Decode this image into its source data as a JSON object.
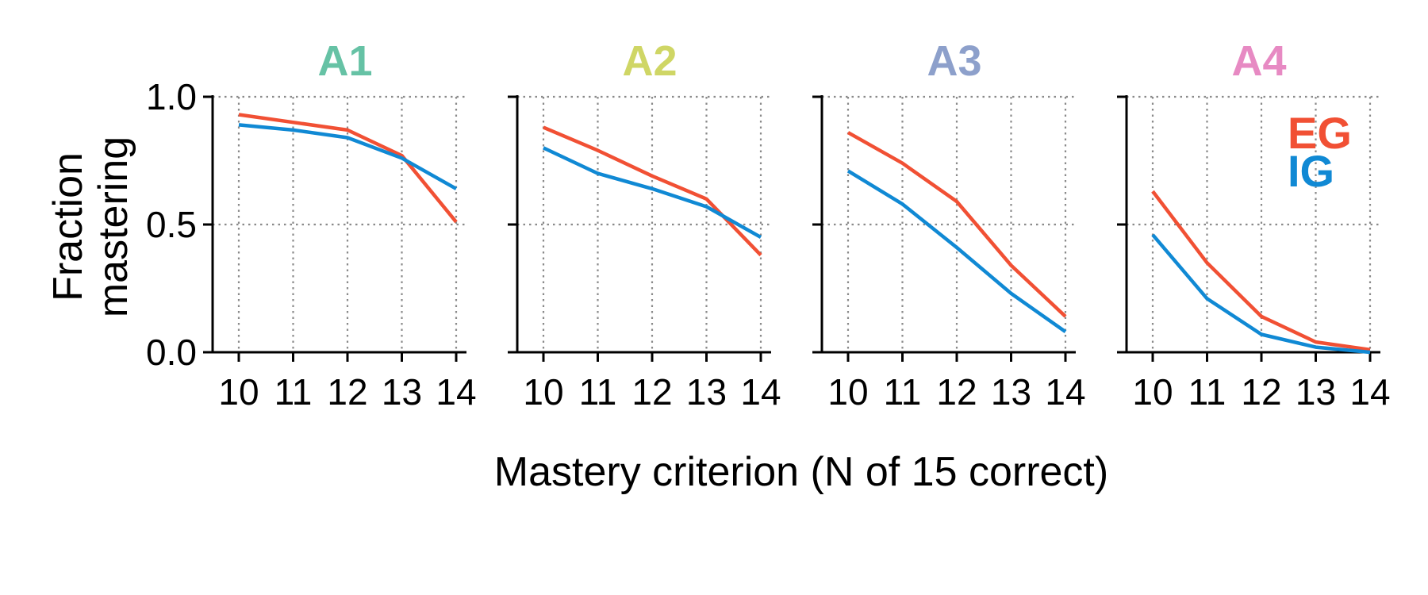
{
  "figure": {
    "ylabel_lines": [
      "Fraction",
      "mastering"
    ],
    "xlabel": "Mastery criterion (N of 15 correct)",
    "legend": [
      {
        "label": "EG",
        "color": "#f15034"
      },
      {
        "label": "IG",
        "color": "#1089d4"
      }
    ]
  },
  "chart_data": [
    {
      "type": "line",
      "title": "A1",
      "title_color": "#66c2a5",
      "x": [
        10,
        11,
        12,
        13,
        14
      ],
      "ylim": [
        0,
        1
      ],
      "yticks": [
        "0.0",
        "0.5",
        "1.0"
      ],
      "grid": true,
      "series": [
        {
          "name": "EG",
          "color": "#f15034",
          "values": [
            0.93,
            0.9,
            0.87,
            0.77,
            0.51
          ]
        },
        {
          "name": "IG",
          "color": "#1089d4",
          "values": [
            0.89,
            0.87,
            0.84,
            0.76,
            0.64
          ]
        }
      ]
    },
    {
      "type": "line",
      "title": "A2",
      "title_color": "#cfd665",
      "x": [
        10,
        11,
        12,
        13,
        14
      ],
      "ylim": [
        0,
        1
      ],
      "yticks": [
        "0.0",
        "0.5",
        "1.0"
      ],
      "grid": true,
      "series": [
        {
          "name": "EG",
          "color": "#f15034",
          "values": [
            0.88,
            0.79,
            0.69,
            0.6,
            0.38
          ]
        },
        {
          "name": "IG",
          "color": "#1089d4",
          "values": [
            0.8,
            0.7,
            0.64,
            0.57,
            0.45
          ]
        }
      ]
    },
    {
      "type": "line",
      "title": "A3",
      "title_color": "#8da0cb",
      "x": [
        10,
        11,
        12,
        13,
        14
      ],
      "ylim": [
        0,
        1
      ],
      "yticks": [
        "0.0",
        "0.5",
        "1.0"
      ],
      "grid": true,
      "series": [
        {
          "name": "EG",
          "color": "#f15034",
          "values": [
            0.86,
            0.74,
            0.59,
            0.34,
            0.14
          ]
        },
        {
          "name": "IG",
          "color": "#1089d4",
          "values": [
            0.71,
            0.58,
            0.41,
            0.23,
            0.08
          ]
        }
      ]
    },
    {
      "type": "line",
      "title": "A4",
      "title_color": "#e78ac3",
      "x": [
        10,
        11,
        12,
        13,
        14
      ],
      "ylim": [
        0,
        1
      ],
      "yticks": [
        "0.0",
        "0.5",
        "1.0"
      ],
      "grid": true,
      "series": [
        {
          "name": "EG",
          "color": "#f15034",
          "values": [
            0.63,
            0.35,
            0.14,
            0.04,
            0.01
          ]
        },
        {
          "name": "IG",
          "color": "#1089d4",
          "values": [
            0.46,
            0.21,
            0.07,
            0.02,
            0.0
          ]
        }
      ]
    }
  ]
}
